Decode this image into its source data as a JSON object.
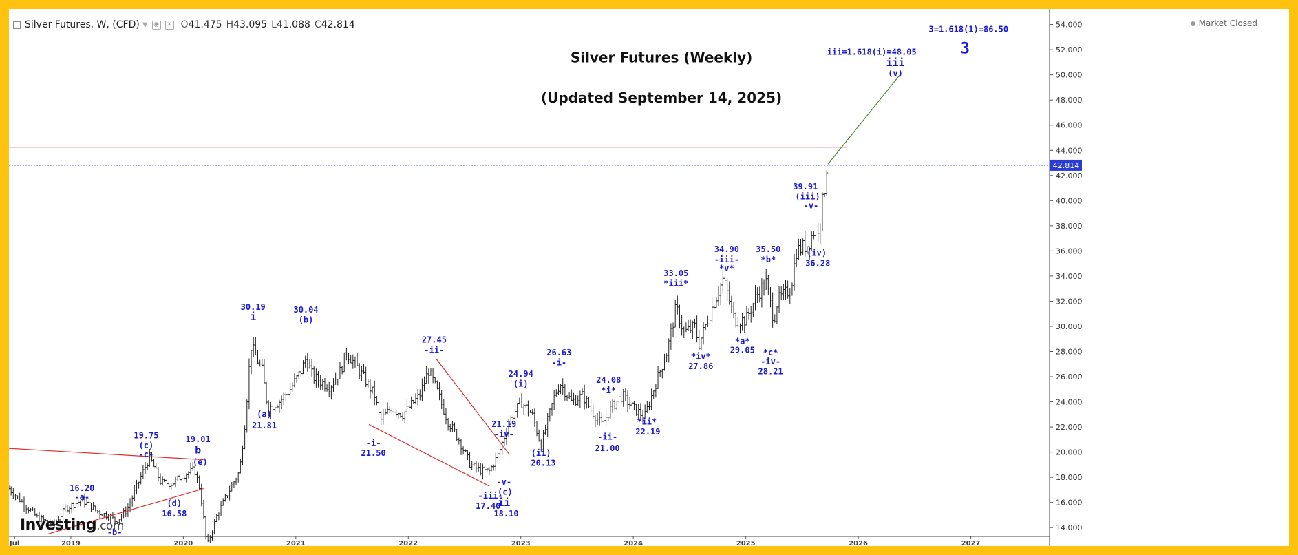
{
  "header": {
    "symbol": "Silver Futures, W, (CFD)",
    "open_label": "O",
    "open": "41.475",
    "high_label": "H",
    "high": "43.095",
    "low_label": "L",
    "low": "41.088",
    "close_label": "C",
    "close": "42.814"
  },
  "market_status": "Market Closed",
  "logo": {
    "name": "Investing",
    "suffix": ".com"
  },
  "colors": {
    "background_frame": "#ffc20e",
    "candles": "#222222",
    "wave_labels": "#1a1ad6",
    "trendlines": "#e03030",
    "projection": "#4a8a2a",
    "current_price_line": "#2a3bd6",
    "current_price_badge": "#2a3bd6"
  },
  "chart_data": {
    "type": "ohlc",
    "title": "Silver Futures (Weekly)",
    "subtitle": "(Updated September 14, 2025)",
    "x_axis_labels": [
      "Jul",
      "2019",
      "2020",
      "2021",
      "2022",
      "2023",
      "2024",
      "2025",
      "2026",
      "2027"
    ],
    "x_axis_positions": [
      2018.5,
      2019.0,
      2020.0,
      2021.0,
      2022.0,
      2023.0,
      2024.0,
      2025.0,
      2026.0,
      2027.0
    ],
    "xlim": [
      2018.45,
      2027.7
    ],
    "ylim": [
      13.3,
      54.8
    ],
    "y_ticks": [
      14,
      16,
      18,
      20,
      22,
      24,
      26,
      28,
      30,
      32,
      34,
      36,
      38,
      40,
      42,
      44,
      46,
      48,
      50,
      52,
      54
    ],
    "y_tick_labels": [
      "14.000",
      "16.000",
      "18.000",
      "20.000",
      "22.000",
      "24.000",
      "26.000",
      "28.000",
      "30.000",
      "32.000",
      "34.000",
      "36.000",
      "38.000",
      "40.000",
      "42.000",
      "44.000",
      "46.000",
      "48.000",
      "50.000",
      "52.000",
      "54.000"
    ],
    "current_price": 42.814,
    "current_price_label": "42.814",
    "price_path": [
      [
        2018.45,
        17.1
      ],
      [
        2018.55,
        16.2
      ],
      [
        2018.7,
        14.8
      ],
      [
        2018.85,
        14.2
      ],
      [
        2018.95,
        15.5
      ],
      [
        2019.1,
        16.2
      ],
      [
        2019.25,
        15.2
      ],
      [
        2019.35,
        14.9
      ],
      [
        2019.4,
        14.5
      ],
      [
        2019.5,
        15.4
      ],
      [
        2019.62,
        18.0
      ],
      [
        2019.7,
        19.6
      ],
      [
        2019.8,
        17.6
      ],
      [
        2019.9,
        17.5
      ],
      [
        2020.0,
        18.2
      ],
      [
        2020.1,
        18.6
      ],
      [
        2020.15,
        17.0
      ],
      [
        2020.21,
        12.5
      ],
      [
        2020.3,
        15.0
      ],
      [
        2020.4,
        16.8
      ],
      [
        2020.5,
        18.5
      ],
      [
        2020.55,
        22.5
      ],
      [
        2020.6,
        28.5
      ],
      [
        2020.7,
        26.5
      ],
      [
        2020.75,
        23.5
      ],
      [
        2020.85,
        24.0
      ],
      [
        2020.95,
        25.0
      ],
      [
        2021.05,
        26.5
      ],
      [
        2021.09,
        27.5
      ],
      [
        2021.15,
        26.0
      ],
      [
        2021.3,
        25.2
      ],
      [
        2021.4,
        26.5
      ],
      [
        2021.45,
        28.0
      ],
      [
        2021.6,
        26.0
      ],
      [
        2021.7,
        24.5
      ],
      [
        2021.75,
        22.5
      ],
      [
        2021.85,
        23.5
      ],
      [
        2021.95,
        23.0
      ],
      [
        2022.1,
        24.5
      ],
      [
        2022.18,
        26.5
      ],
      [
        2022.25,
        25.0
      ],
      [
        2022.35,
        22.5
      ],
      [
        2022.45,
        21.0
      ],
      [
        2022.55,
        19.0
      ],
      [
        2022.65,
        18.5
      ],
      [
        2022.72,
        18.5
      ],
      [
        2022.8,
        19.8
      ],
      [
        2022.9,
        22.5
      ],
      [
        2023.0,
        24.0
      ],
      [
        2023.1,
        23.0
      ],
      [
        2023.18,
        20.5
      ],
      [
        2023.3,
        24.5
      ],
      [
        2023.35,
        25.5
      ],
      [
        2023.45,
        24.0
      ],
      [
        2023.55,
        24.5
      ],
      [
        2023.65,
        23.0
      ],
      [
        2023.72,
        22.2
      ],
      [
        2023.8,
        23.5
      ],
      [
        2023.9,
        24.5
      ],
      [
        2024.0,
        23.5
      ],
      [
        2024.1,
        22.8
      ],
      [
        2024.2,
        25.5
      ],
      [
        2024.3,
        28.0
      ],
      [
        2024.38,
        31.5
      ],
      [
        2024.45,
        29.5
      ],
      [
        2024.55,
        30.0
      ],
      [
        2024.58,
        28.5
      ],
      [
        2024.7,
        31.5
      ],
      [
        2024.8,
        33.8
      ],
      [
        2024.9,
        30.5
      ],
      [
        2025.0,
        30.5
      ],
      [
        2025.1,
        32.5
      ],
      [
        2025.18,
        33.5
      ],
      [
        2025.25,
        30.5
      ],
      [
        2025.28,
        32.0
      ],
      [
        2025.4,
        33.0
      ],
      [
        2025.45,
        36.0
      ],
      [
        2025.55,
        36.5
      ],
      [
        2025.6,
        37.5
      ],
      [
        2025.65,
        38.0
      ],
      [
        2025.7,
        41.0
      ],
      [
        2025.72,
        42.8
      ]
    ],
    "trendlines": [
      {
        "name": "upper-triangle",
        "x": [
          2018.45,
          2020.18
        ],
        "y": [
          20.3,
          19.4
        ]
      },
      {
        "name": "lower-triangle",
        "x": [
          2018.8,
          2020.18
        ],
        "y": [
          13.5,
          17.1
        ]
      },
      {
        "name": "diagonal-upper",
        "x": [
          2022.25,
          2022.9
        ],
        "y": [
          27.4,
          19.8
        ]
      },
      {
        "name": "diagonal-lower",
        "x": [
          2021.65,
          2022.72
        ],
        "y": [
          22.2,
          17.3
        ]
      },
      {
        "name": "resistance",
        "x": [
          2018.45,
          2025.9
        ],
        "y": [
          44.25,
          44.25
        ]
      }
    ],
    "projection": {
      "x": [
        2025.73,
        2026.37
      ],
      "y": [
        42.9,
        50.0
      ]
    },
    "annotations": [
      {
        "text": "Silver Futures (Weekly)",
        "x": 2024.25,
        "y": 51.0,
        "kind": "title"
      },
      {
        "text": "(Updated September 14, 2025)",
        "x": 2024.25,
        "y": 47.8,
        "kind": "title"
      },
      {
        "text": "16.20",
        "x": 2019.1,
        "y": 16.9
      },
      {
        "text": "-a-",
        "x": 2019.1,
        "y": 16.2
      },
      {
        "text": "-b-",
        "x": 2019.39,
        "y": 13.4
      },
      {
        "text": "19.75",
        "x": 2019.67,
        "y": 21.1
      },
      {
        "text": "(c)",
        "x": 2019.67,
        "y": 20.3
      },
      {
        "text": "-c-",
        "x": 2019.67,
        "y": 19.6
      },
      {
        "text": "(d)",
        "x": 2019.92,
        "y": 15.7
      },
      {
        "text": "16.58",
        "x": 2019.92,
        "y": 14.9
      },
      {
        "text": "19.01",
        "x": 2020.13,
        "y": 20.8
      },
      {
        "text": "b",
        "x": 2020.13,
        "y": 19.9,
        "big": true
      },
      {
        "text": "(e)",
        "x": 2020.15,
        "y": 19.0
      },
      {
        "text": "30.19",
        "x": 2020.62,
        "y": 31.3
      },
      {
        "text": "i",
        "x": 2020.62,
        "y": 30.5,
        "big": true
      },
      {
        "text": "(a)",
        "x": 2020.72,
        "y": 22.8
      },
      {
        "text": "21.81",
        "x": 2020.72,
        "y": 21.9
      },
      {
        "text": "30.04",
        "x": 2021.09,
        "y": 31.1
      },
      {
        "text": "(b)",
        "x": 2021.09,
        "y": 30.3
      },
      {
        "text": "-i-",
        "x": 2021.69,
        "y": 20.5
      },
      {
        "text": "21.50",
        "x": 2021.69,
        "y": 19.7
      },
      {
        "text": "27.45",
        "x": 2022.23,
        "y": 28.7
      },
      {
        "text": "-ii-",
        "x": 2022.23,
        "y": 27.9
      },
      {
        "text": "-iii-",
        "x": 2022.73,
        "y": 16.3
      },
      {
        "text": "17.40",
        "x": 2022.71,
        "y": 15.5
      },
      {
        "text": "21.19",
        "x": 2022.85,
        "y": 22.0
      },
      {
        "text": "-iv-",
        "x": 2022.85,
        "y": 21.2
      },
      {
        "text": "-v-",
        "x": 2022.85,
        "y": 17.4
      },
      {
        "text": "(c)",
        "x": 2022.86,
        "y": 16.6
      },
      {
        "text": "ii",
        "x": 2022.85,
        "y": 15.7,
        "big": true
      },
      {
        "text": "18.10",
        "x": 2022.87,
        "y": 14.9
      },
      {
        "text": "24.94",
        "x": 2023.0,
        "y": 26.0
      },
      {
        "text": "(i)",
        "x": 2023.0,
        "y": 25.2
      },
      {
        "text": "(ii)",
        "x": 2023.18,
        "y": 19.7
      },
      {
        "text": "20.13",
        "x": 2023.2,
        "y": 18.9
      },
      {
        "text": "26.63",
        "x": 2023.34,
        "y": 27.7
      },
      {
        "text": "-i-",
        "x": 2023.34,
        "y": 26.9
      },
      {
        "text": "24.08",
        "x": 2023.78,
        "y": 25.5
      },
      {
        "text": "*i*",
        "x": 2023.78,
        "y": 24.7
      },
      {
        "text": "-ii-",
        "x": 2023.77,
        "y": 21.0
      },
      {
        "text": "21.00",
        "x": 2023.77,
        "y": 20.1
      },
      {
        "text": "*ii*",
        "x": 2024.12,
        "y": 22.2
      },
      {
        "text": "22.19",
        "x": 2024.13,
        "y": 21.4
      },
      {
        "text": "33.05",
        "x": 2024.38,
        "y": 34.0
      },
      {
        "text": "*iii*",
        "x": 2024.38,
        "y": 33.2
      },
      {
        "text": "*iv*",
        "x": 2024.6,
        "y": 27.4
      },
      {
        "text": "27.86",
        "x": 2024.6,
        "y": 26.6
      },
      {
        "text": "34.90",
        "x": 2024.83,
        "y": 35.9
      },
      {
        "text": "-iii-",
        "x": 2024.83,
        "y": 35.1
      },
      {
        "text": "*v*",
        "x": 2024.83,
        "y": 34.4
      },
      {
        "text": "*a*",
        "x": 2024.97,
        "y": 28.6
      },
      {
        "text": "29.05",
        "x": 2024.97,
        "y": 27.9
      },
      {
        "text": "35.50",
        "x": 2025.2,
        "y": 35.9
      },
      {
        "text": "*b*",
        "x": 2025.2,
        "y": 35.1
      },
      {
        "text": "*c*",
        "x": 2025.22,
        "y": 27.7
      },
      {
        "text": "-iv-",
        "x": 2025.22,
        "y": 27.0
      },
      {
        "text": "28.21",
        "x": 2025.22,
        "y": 26.2
      },
      {
        "text": "39.91",
        "x": 2025.53,
        "y": 40.9
      },
      {
        "text": "(iii)",
        "x": 2025.55,
        "y": 40.1
      },
      {
        "text": "-v-",
        "x": 2025.58,
        "y": 39.4
      },
      {
        "text": "(iv)",
        "x": 2025.63,
        "y": 35.6
      },
      {
        "text": "36.28",
        "x": 2025.64,
        "y": 34.8
      },
      {
        "text": "iii=1.618(i)=48.05",
        "x": 2026.12,
        "y": 51.6
      },
      {
        "text": "iii",
        "x": 2026.33,
        "y": 50.7,
        "big": true
      },
      {
        "text": "(v)",
        "x": 2026.33,
        "y": 49.9
      },
      {
        "text": "3=1.618(1)=86.50",
        "x": 2026.98,
        "y": 53.4
      },
      {
        "text": "3",
        "x": 2026.95,
        "y": 51.7,
        "big": true,
        "huge": true
      }
    ]
  }
}
